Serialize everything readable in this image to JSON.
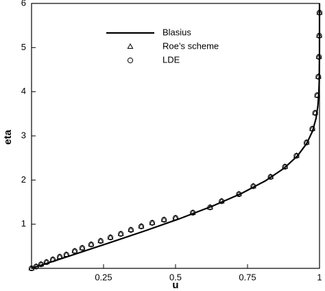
{
  "chart_data": {
    "type": "scatter",
    "x_label": "u",
    "y_label": "eta",
    "xlim": [
      0,
      1
    ],
    "ylim": [
      0,
      6
    ],
    "xticks": [
      0.25,
      0.5,
      0.75,
      1
    ],
    "yticks": [
      1,
      2,
      3,
      4,
      5,
      6
    ],
    "series": [
      {
        "name": "Blasius",
        "color": "#000000",
        "style": "line",
        "x": [
          0,
          0.1328,
          0.2647,
          0.3938,
          0.5168,
          0.6298,
          0.729,
          0.8115,
          0.8761,
          0.9233,
          0.9555,
          0.9759,
          0.9878,
          0.9943,
          0.9975,
          0.999,
          0.9999,
          1.0
        ],
        "values": [
          0,
          0.283,
          0.566,
          0.849,
          1.131,
          1.414,
          1.697,
          1.98,
          2.263,
          2.546,
          2.828,
          3.111,
          3.394,
          3.677,
          3.96,
          4.243,
          4.95,
          6
        ]
      },
      {
        "name": "Roe’s scheme",
        "color": "#000000",
        "style": "triangle",
        "x": [
          0,
          0.016,
          0.033,
          0.052,
          0.074,
          0.098,
          0.121,
          0.15,
          0.176,
          0.207,
          0.24,
          0.274,
          0.31,
          0.345,
          0.381,
          0.419,
          0.46,
          0.5,
          0.56,
          0.62,
          0.66,
          0.72,
          0.77,
          0.83,
          0.88,
          0.92,
          0.955,
          0.975,
          0.985,
          0.992,
          0.996,
          0.998,
          0.999,
          1.0
        ],
        "values": [
          0,
          0.04,
          0.09,
          0.14,
          0.2,
          0.26,
          0.31,
          0.39,
          0.46,
          0.54,
          0.62,
          0.7,
          0.78,
          0.87,
          0.95,
          1.03,
          1.1,
          1.14,
          1.26,
          1.38,
          1.52,
          1.68,
          1.86,
          2.07,
          2.3,
          2.55,
          2.85,
          3.16,
          3.52,
          3.92,
          4.34,
          4.79,
          5.27,
          5.79
        ]
      },
      {
        "name": "LDE",
        "color": "#000000",
        "style": "circle",
        "x": [
          0,
          0.016,
          0.033,
          0.052,
          0.074,
          0.098,
          0.121,
          0.15,
          0.176,
          0.207,
          0.24,
          0.274,
          0.31,
          0.345,
          0.381,
          0.419,
          0.46,
          0.5,
          0.56,
          0.62,
          0.66,
          0.72,
          0.77,
          0.83,
          0.88,
          0.92,
          0.955,
          0.975,
          0.985,
          0.992,
          0.996,
          0.998,
          0.999,
          1.0
        ],
        "values": [
          0,
          0.04,
          0.09,
          0.14,
          0.2,
          0.26,
          0.31,
          0.39,
          0.46,
          0.54,
          0.62,
          0.7,
          0.78,
          0.87,
          0.95,
          1.03,
          1.1,
          1.14,
          1.26,
          1.38,
          1.52,
          1.68,
          1.86,
          2.07,
          2.3,
          2.55,
          2.85,
          3.16,
          3.52,
          3.92,
          4.34,
          4.79,
          5.27,
          5.79
        ]
      }
    ]
  }
}
